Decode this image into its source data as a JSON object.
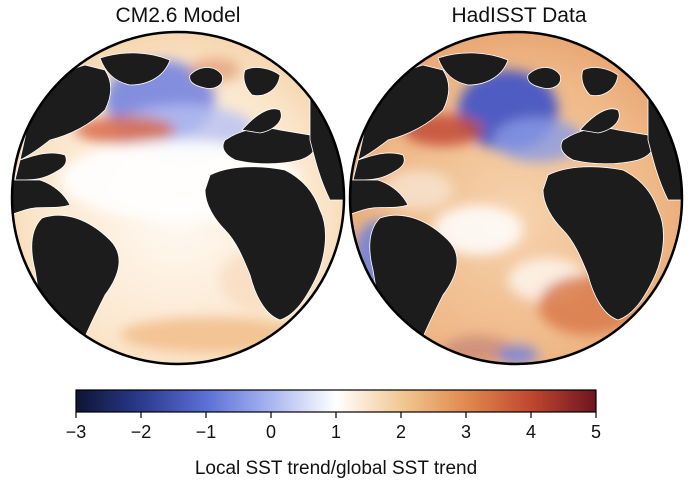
{
  "panels": [
    {
      "title": "CM2.6 Model"
    },
    {
      "title": "HadISST Data"
    }
  ],
  "colorbar": {
    "label": "Local SST trend/global SST trend",
    "ticks": [
      -3,
      -2,
      -1,
      0,
      1,
      2,
      3,
      4,
      5
    ],
    "tick_labels": [
      "−3",
      "−2",
      "−1",
      "0",
      "1",
      "2",
      "3",
      "4",
      "5"
    ],
    "range": [
      -3,
      5
    ],
    "colors": [
      "#0d1436",
      "#2b3a8c",
      "#5b6fd6",
      "#a8b6f0",
      "#ffffff",
      "#f2c895",
      "#e08a4f",
      "#c0472f",
      "#6e1420"
    ]
  },
  "map_colors": {
    "land": "#1c1c1c",
    "coastline": "#ffffff",
    "globe_outline": "#000000"
  }
}
